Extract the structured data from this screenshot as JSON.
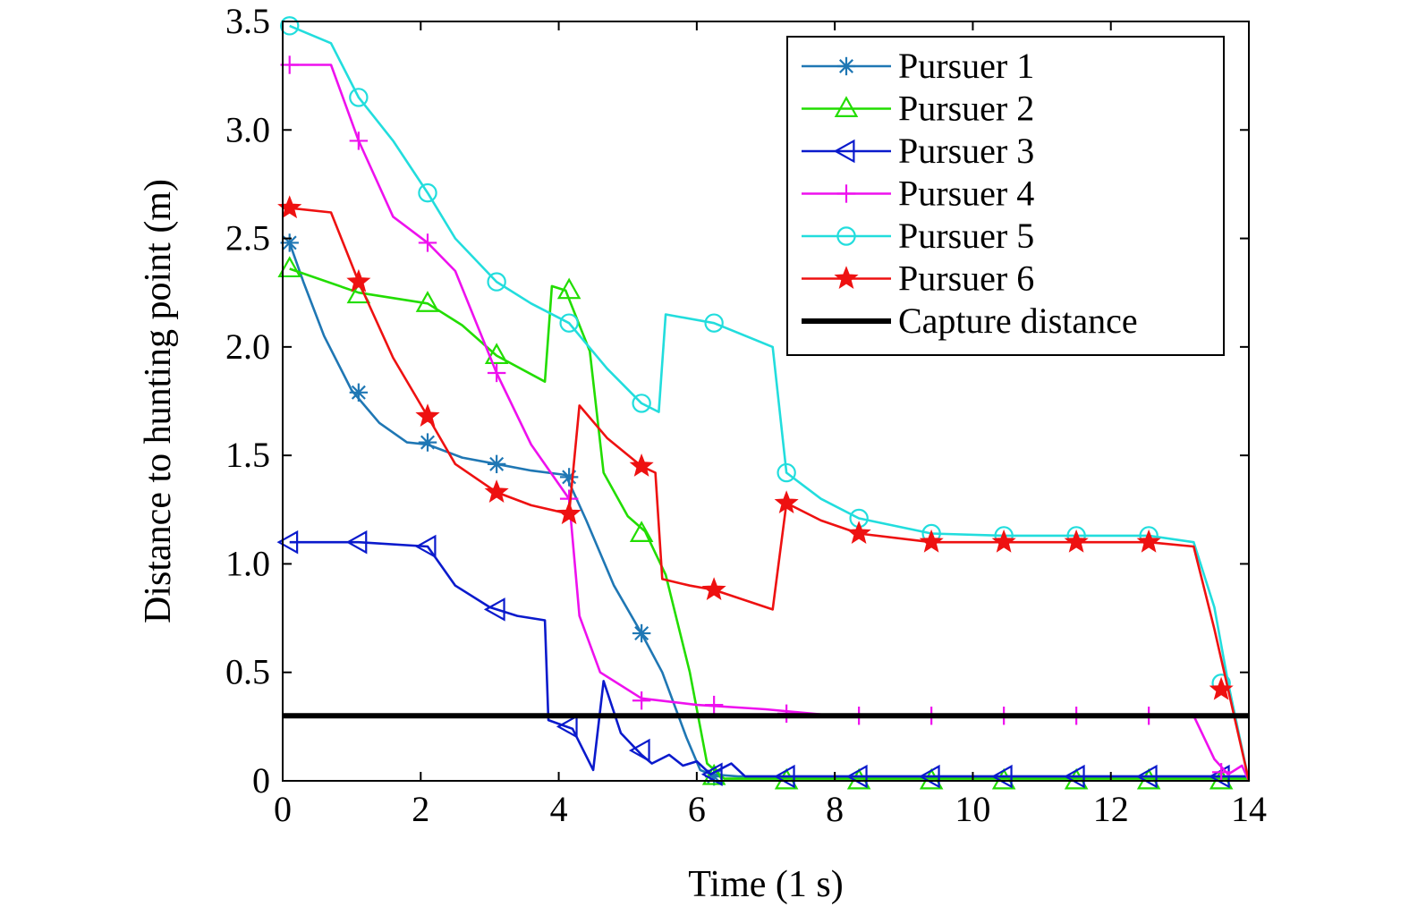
{
  "chart_data": {
    "type": "line",
    "xlabel": "Time (1 s)",
    "ylabel": "Distance to hunting point (m)",
    "xlim": [
      0,
      14
    ],
    "ylim": [
      0,
      3.5
    ],
    "xticks": [
      0,
      2,
      4,
      6,
      8,
      10,
      12,
      14
    ],
    "xtick_labels": [
      "0",
      "2",
      "4",
      "6",
      "8",
      "10",
      "12",
      "14"
    ],
    "yticks": [
      0,
      0.5,
      1.0,
      1.5,
      2.0,
      2.5,
      3.0,
      3.5
    ],
    "ytick_labels": [
      "0",
      "0.5",
      "1.0",
      "1.5",
      "2.0",
      "2.5",
      "3.0",
      "3.5"
    ],
    "grid": false,
    "legend_position": "top-right",
    "series": [
      {
        "name": "Pursuer 1",
        "color": "#1f77b4",
        "marker": "asterisk",
        "x": [
          0.1,
          0.3,
          0.6,
          1.0,
          1.4,
          1.8,
          2.1,
          2.6,
          3.1,
          3.6,
          4.1,
          4.4,
          4.8,
          5.2,
          5.5,
          5.85,
          6.05,
          6.2,
          6.6,
          7.0,
          14.0
        ],
        "y": [
          2.48,
          2.3,
          2.05,
          1.8,
          1.65,
          1.56,
          1.55,
          1.49,
          1.46,
          1.43,
          1.41,
          1.2,
          0.9,
          0.68,
          0.5,
          0.2,
          0.05,
          0.03,
          0.02,
          0.02,
          0.02
        ],
        "marker_x": [
          0.1,
          1.1,
          2.1,
          3.1,
          4.15,
          5.2,
          6.25
        ],
        "marker_y": [
          2.48,
          1.79,
          1.56,
          1.46,
          1.4,
          0.68,
          0.02
        ]
      },
      {
        "name": "Pursuer 2",
        "color": "#22dd00",
        "marker": "triangle-up",
        "x": [
          0.1,
          1.1,
          2.1,
          2.6,
          3.1,
          3.8,
          3.9,
          4.1,
          4.45,
          4.65,
          5.0,
          5.25,
          5.55,
          5.9,
          6.15,
          6.4,
          14.0
        ],
        "y": [
          2.36,
          2.25,
          2.2,
          2.1,
          1.96,
          1.84,
          2.28,
          2.26,
          1.98,
          1.42,
          1.22,
          1.15,
          0.95,
          0.5,
          0.08,
          0.01,
          0.01
        ],
        "marker_x": [
          0.1,
          1.1,
          2.1,
          3.1,
          4.15,
          5.2,
          6.25,
          7.3,
          8.35,
          9.4,
          10.45,
          11.5,
          12.55,
          13.6
        ],
        "marker_y": [
          2.36,
          2.24,
          2.2,
          1.96,
          2.26,
          1.14,
          0.02,
          0.0,
          0.0,
          0.0,
          0.0,
          0.0,
          0.0,
          0.0
        ]
      },
      {
        "name": "Pursuer 3",
        "color": "#0a1acc",
        "marker": "triangle-left",
        "x": [
          0.1,
          1.1,
          2.1,
          2.5,
          3.0,
          3.4,
          3.8,
          3.85,
          4.2,
          4.5,
          4.65,
          4.9,
          5.2,
          5.35,
          5.6,
          5.8,
          6.0,
          6.2,
          6.5,
          6.7,
          14.0
        ],
        "y": [
          1.1,
          1.1,
          1.08,
          0.9,
          0.8,
          0.76,
          0.74,
          0.28,
          0.24,
          0.05,
          0.46,
          0.22,
          0.12,
          0.08,
          0.12,
          0.07,
          0.09,
          0.03,
          0.08,
          0.02,
          0.02
        ],
        "marker_x": [
          0.1,
          1.1,
          2.1,
          3.1,
          4.15,
          5.2,
          6.25,
          7.3,
          8.35,
          9.4,
          10.45,
          11.5,
          12.55,
          13.6
        ],
        "marker_y": [
          1.1,
          1.1,
          1.08,
          0.79,
          0.25,
          0.14,
          0.03,
          0.02,
          0.02,
          0.02,
          0.02,
          0.02,
          0.02,
          0.02
        ]
      },
      {
        "name": "Pursuer 4",
        "color": "#ee11ee",
        "marker": "plus",
        "x": [
          0.1,
          0.7,
          1.1,
          1.6,
          2.1,
          2.5,
          3.1,
          3.6,
          4.15,
          4.3,
          4.6,
          5.2,
          6.0,
          7.0,
          8.0,
          9.0,
          10.0,
          11.0,
          12.0,
          13.2,
          13.5,
          13.7,
          13.9,
          14.0
        ],
        "y": [
          3.3,
          3.3,
          2.95,
          2.6,
          2.48,
          2.35,
          1.88,
          1.55,
          1.3,
          0.76,
          0.5,
          0.38,
          0.35,
          0.33,
          0.3,
          0.3,
          0.3,
          0.3,
          0.3,
          0.3,
          0.1,
          0.03,
          0.07,
          0.0
        ],
        "marker_x": [
          0.1,
          1.1,
          2.1,
          3.1,
          4.15,
          5.2,
          6.25,
          7.3,
          8.35,
          9.4,
          10.45,
          11.5,
          12.55,
          13.6
        ],
        "marker_y": [
          3.3,
          2.95,
          2.48,
          1.88,
          1.3,
          0.37,
          0.35,
          0.31,
          0.3,
          0.3,
          0.3,
          0.3,
          0.3,
          0.04
        ]
      },
      {
        "name": "Pursuer 5",
        "color": "#22dddd",
        "marker": "circle",
        "x": [
          0.1,
          0.7,
          1.1,
          1.6,
          2.1,
          2.5,
          3.1,
          3.6,
          4.15,
          4.7,
          5.2,
          5.45,
          5.55,
          6.25,
          7.1,
          7.3,
          7.8,
          8.35,
          9.4,
          10.45,
          11.5,
          12.55,
          13.2,
          13.5,
          13.7,
          14.0
        ],
        "y": [
          3.48,
          3.4,
          3.15,
          2.95,
          2.71,
          2.5,
          2.3,
          2.2,
          2.11,
          1.9,
          1.74,
          1.7,
          2.15,
          2.11,
          2.0,
          1.42,
          1.3,
          1.21,
          1.14,
          1.13,
          1.13,
          1.13,
          1.1,
          0.8,
          0.45,
          0.0
        ],
        "marker_x": [
          0.1,
          1.1,
          2.1,
          3.1,
          4.15,
          5.2,
          6.25,
          7.3,
          8.35,
          9.4,
          10.45,
          11.5,
          12.55,
          13.6
        ],
        "marker_y": [
          3.48,
          3.15,
          2.71,
          2.3,
          2.11,
          1.74,
          2.11,
          1.42,
          1.21,
          1.14,
          1.13,
          1.13,
          1.13,
          0.45
        ]
      },
      {
        "name": "Pursuer 6",
        "color": "#ee1111",
        "marker": "star",
        "x": [
          0.1,
          0.7,
          1.1,
          1.6,
          2.1,
          2.5,
          3.1,
          3.6,
          4.15,
          4.3,
          4.7,
          5.2,
          5.4,
          5.5,
          5.9,
          6.25,
          7.1,
          7.3,
          7.8,
          8.35,
          9.4,
          10.45,
          11.5,
          12.55,
          13.2,
          13.5,
          13.7,
          14.0
        ],
        "y": [
          2.64,
          2.62,
          2.3,
          1.95,
          1.68,
          1.46,
          1.33,
          1.27,
          1.23,
          1.73,
          1.58,
          1.45,
          1.42,
          0.93,
          0.9,
          0.88,
          0.79,
          1.28,
          1.2,
          1.14,
          1.1,
          1.1,
          1.1,
          1.1,
          1.08,
          0.7,
          0.42,
          0.0
        ],
        "marker_x": [
          0.1,
          1.1,
          2.1,
          3.1,
          4.15,
          5.2,
          6.25,
          7.3,
          8.35,
          9.4,
          10.45,
          11.5,
          12.55,
          13.6
        ],
        "marker_y": [
          2.64,
          2.3,
          1.68,
          1.33,
          1.23,
          1.45,
          0.88,
          1.28,
          1.14,
          1.1,
          1.1,
          1.1,
          1.1,
          0.42
        ]
      },
      {
        "name": "Capture distance",
        "color": "#000000",
        "marker": "none",
        "x": [
          0.0,
          14.0
        ],
        "y": [
          0.3,
          0.3
        ]
      }
    ]
  }
}
